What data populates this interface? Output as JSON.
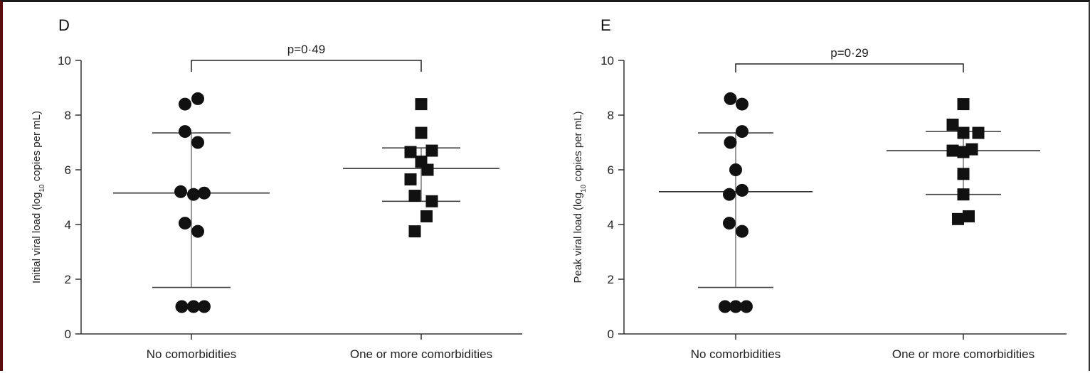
{
  "chart_data": [
    {
      "panel": "D",
      "type": "scatter",
      "ylabel_main": "Initial viral load (log",
      "ylabel_sub": "10",
      "ylabel_end": " copies per mL)",
      "ylim": [
        0,
        10
      ],
      "yticks": [
        "0",
        "2",
        "4",
        "6",
        "8",
        "10"
      ],
      "categories": [
        "No comorbidities",
        "One or more comorbidities"
      ],
      "pvalue": "p=0·49",
      "groups": [
        {
          "category": "No comorbidities",
          "marker": "circle",
          "points": [
            [
              -0.3,
              8.4
            ],
            [
              0.3,
              8.6
            ],
            [
              -0.3,
              7.4
            ],
            [
              0.3,
              7.0
            ],
            [
              -0.5,
              5.2
            ],
            [
              0.1,
              5.1
            ],
            [
              0.6,
              5.15
            ],
            [
              -0.3,
              4.05
            ],
            [
              0.3,
              3.75
            ],
            [
              -0.45,
              1.0
            ],
            [
              0.1,
              1.0
            ],
            [
              0.6,
              1.0
            ]
          ],
          "median": 5.15,
          "q1": 1.7,
          "q3": 7.35
        },
        {
          "category": "One or more comorbidities",
          "marker": "square",
          "points": [
            [
              0.0,
              8.4
            ],
            [
              0.0,
              7.35
            ],
            [
              -0.5,
              6.65
            ],
            [
              0.5,
              6.7
            ],
            [
              0.0,
              6.3
            ],
            [
              0.3,
              6.0
            ],
            [
              -0.5,
              5.65
            ],
            [
              -0.3,
              5.05
            ],
            [
              0.5,
              4.85
            ],
            [
              0.25,
              4.3
            ],
            [
              -0.3,
              3.75
            ]
          ],
          "median": 6.05,
          "q1": 4.85,
          "q3": 6.8
        }
      ]
    },
    {
      "panel": "E",
      "type": "scatter",
      "ylabel_main": "Peak viral load (log",
      "ylabel_sub": "10",
      "ylabel_end": " copies per mL)",
      "ylim": [
        0,
        10
      ],
      "yticks": [
        "0",
        "2",
        "4",
        "6",
        "8",
        "10"
      ],
      "categories": [
        "No comorbidities",
        "One or more comorbidities"
      ],
      "pvalue": "p=0·29",
      "groups": [
        {
          "category": "No comorbidities",
          "marker": "circle",
          "points": [
            [
              -0.25,
              8.6
            ],
            [
              0.3,
              8.4
            ],
            [
              0.3,
              7.4
            ],
            [
              -0.25,
              7.0
            ],
            [
              0.0,
              6.0
            ],
            [
              -0.3,
              5.1
            ],
            [
              0.3,
              5.25
            ],
            [
              -0.3,
              4.05
            ],
            [
              0.3,
              3.75
            ],
            [
              -0.5,
              1.0
            ],
            [
              0.0,
              1.0
            ],
            [
              0.5,
              1.0
            ]
          ],
          "median": 5.2,
          "q1": 1.7,
          "q3": 7.35
        },
        {
          "category": "One or more comorbidities",
          "marker": "square",
          "points": [
            [
              0.0,
              8.4
            ],
            [
              -0.5,
              7.65
            ],
            [
              0.0,
              7.35
            ],
            [
              0.7,
              7.35
            ],
            [
              -0.5,
              6.7
            ],
            [
              0.0,
              6.65
            ],
            [
              0.4,
              6.75
            ],
            [
              0.0,
              5.85
            ],
            [
              0.0,
              5.1
            ],
            [
              -0.25,
              4.2
            ],
            [
              0.25,
              4.3
            ]
          ],
          "median": 6.7,
          "q1": 5.1,
          "q3": 7.4
        }
      ]
    }
  ]
}
